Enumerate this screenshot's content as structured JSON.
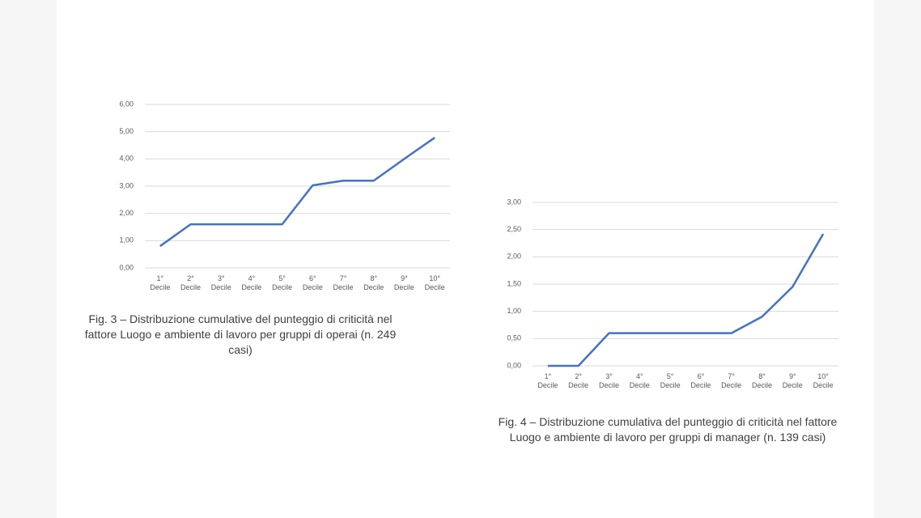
{
  "chart_data": [
    {
      "type": "line",
      "categories": [
        "1° Decile",
        "2° Decile",
        "3° Decile",
        "4° Decile",
        "5° Decile",
        "6° Decile",
        "7° Decile",
        "8° Decile",
        "9° Decile",
        "10° Decile"
      ],
      "series": [
        {
          "color": "#4472c4",
          "values": [
            0.8,
            1.6,
            1.6,
            1.6,
            1.6,
            3.03,
            3.2,
            3.2,
            4.0,
            4.78
          ]
        }
      ],
      "ylim": [
        0,
        6
      ],
      "yticks": [
        {
          "value": 0,
          "label": "0,00"
        },
        {
          "value": 1,
          "label": "1,00"
        },
        {
          "value": 2,
          "label": "2,00"
        },
        {
          "value": 3,
          "label": "3,00"
        },
        {
          "value": 4,
          "label": "4,00"
        },
        {
          "value": 5,
          "label": "5,00"
        },
        {
          "value": 6,
          "label": "6,00"
        }
      ],
      "grid": true,
      "caption": "Fig. 3 – Distribuzione cumulative del punteggio di criticità nel fattore Luogo e ambiente di lavoro per gruppi di operai (n. 249 casi)"
    },
    {
      "type": "line",
      "categories": [
        "1° Decile",
        "2° Decile",
        "3° Decile",
        "4° Decile",
        "5° Decile",
        "6° Decile",
        "7° Decile",
        "8° Decile",
        "9° Decile",
        "10° Decile"
      ],
      "series": [
        {
          "color": "#4472c4",
          "values": [
            0,
            0,
            0.6,
            0.6,
            0.6,
            0.6,
            0.6,
            0.9,
            1.45,
            2.42
          ]
        }
      ],
      "ylim": [
        0,
        3
      ],
      "yticks": [
        {
          "value": 0,
          "label": "0,00"
        },
        {
          "value": 0.5,
          "label": "0,50"
        },
        {
          "value": 1,
          "label": "1,00"
        },
        {
          "value": 1.5,
          "label": "1,50"
        },
        {
          "value": 2,
          "label": "2,00"
        },
        {
          "value": 2.5,
          "label": "2,50"
        },
        {
          "value": 3,
          "label": "3,00"
        }
      ],
      "grid": true,
      "caption": "Fig. 4 – Distribuzione cumulativa del punteggio di criticità nel fattore Luogo e ambiente di lavoro per gruppi di manager (n. 139 casi)"
    }
  ]
}
